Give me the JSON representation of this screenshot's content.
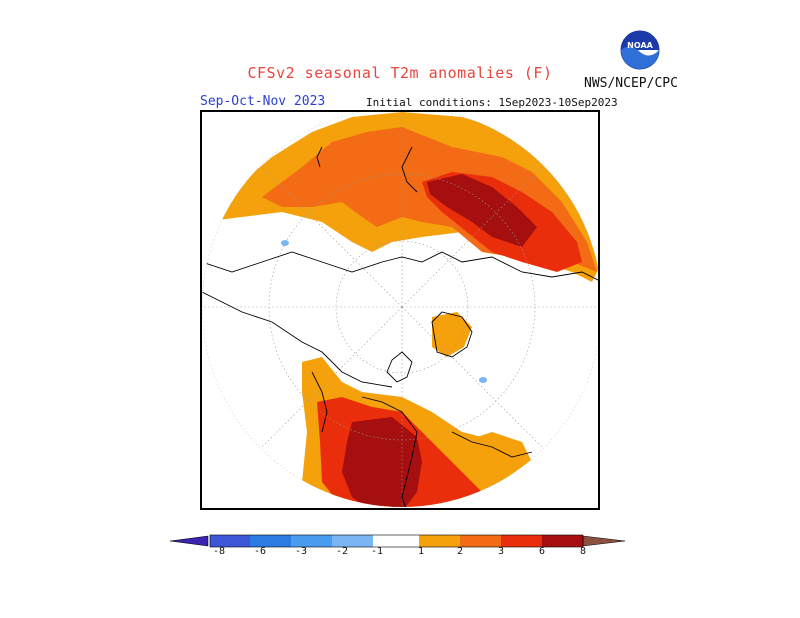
{
  "header": {
    "title": "CFSv2 seasonal T2m anomalies (F)",
    "agency": "NWS/NCEP/CPC",
    "logo_text": "NOAA"
  },
  "subheader": {
    "season": "Sep-Oct-Nov 2023",
    "initial_conditions": "Initial conditions: 1Sep2023-10Sep2023"
  },
  "map": {
    "projection": "north polar stereographic",
    "variable": "2m temperature anomaly",
    "units": "F"
  },
  "colorbar": {
    "labels": [
      "-8",
      "-6",
      "-3",
      "-2",
      "-1",
      "1",
      "2",
      "3",
      "6",
      "8"
    ],
    "colors": [
      "#3b23b0",
      "#3d56d8",
      "#2b7be0",
      "#4a9cf0",
      "#7ab6f4",
      "#ffffff",
      "#f5a10c",
      "#f36b14",
      "#ea2e0c",
      "#a50f0f",
      "#c6a090",
      "#8b5040"
    ]
  }
}
